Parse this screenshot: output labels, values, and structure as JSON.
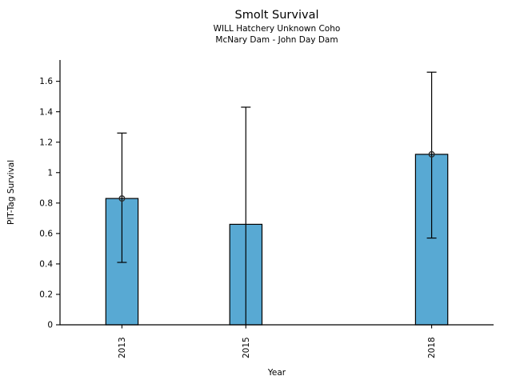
{
  "chart_data": {
    "type": "bar",
    "title": "Smolt Survival",
    "subtitle_line1": "WILL Hatchery Unknown Coho",
    "subtitle_line2": "McNary Dam - John Day Dam",
    "xlabel": "Year",
    "ylabel": "PIT-Tag Survival",
    "x": [
      2013,
      2015,
      2018
    ],
    "x_tick_labels": [
      "2013",
      "2015",
      "2018"
    ],
    "values": [
      0.83,
      0.66,
      1.12
    ],
    "error_bars": [
      {
        "low": 0.41,
        "high": 1.26,
        "low_capped": true
      },
      {
        "low": 0.0,
        "high": 1.43,
        "low_capped": false
      },
      {
        "low": 0.57,
        "high": 1.66,
        "low_capped": true
      }
    ],
    "point_markers": [
      true,
      false,
      true
    ],
    "y_ticks": [
      0,
      0.2,
      0.4,
      0.6,
      0.8,
      1,
      1.2,
      1.4,
      1.6
    ],
    "y_tick_labels": [
      "0",
      "0.2",
      "0.4",
      "0.6",
      "0.8",
      "1",
      "1.2",
      "1.4",
      "1.6"
    ],
    "ylim": [
      0,
      1.74
    ],
    "xlim": [
      2012,
      2019
    ],
    "bar_width_years": 0.52,
    "bar_color": "#58A9D3",
    "bar_edge_color": "#000000",
    "axis_color": "#000000",
    "marker_color": "#2a2a2a",
    "grid": false,
    "legend": false
  }
}
